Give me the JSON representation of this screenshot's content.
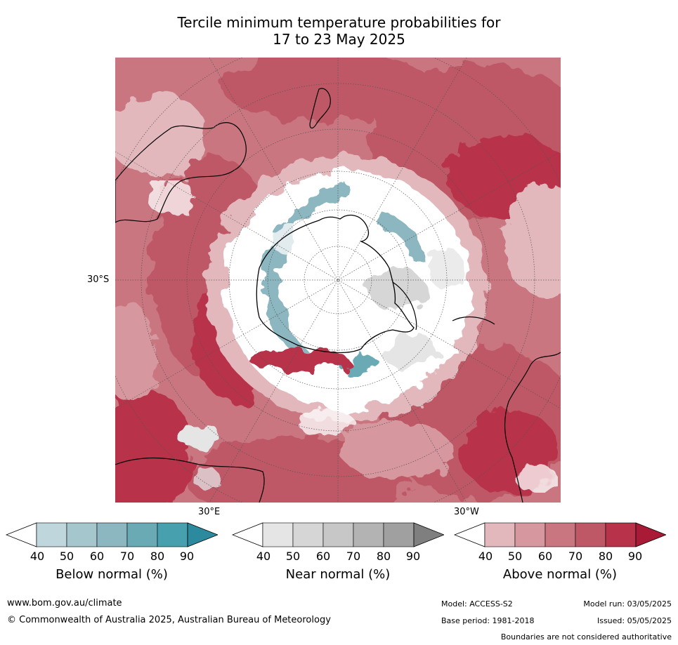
{
  "title_line1": "Tercile minimum temperature probabilities for",
  "title_line2": "17 to 23 May 2025",
  "map": {
    "lat_label": "30°S",
    "lon_labels": [
      "30°E",
      "30°W"
    ]
  },
  "colorbars": [
    {
      "label": "Below normal (%)",
      "ticks": [
        "40",
        "50",
        "60",
        "70",
        "80",
        "90"
      ],
      "colors": [
        "#ffffff",
        "#bfd6dc",
        "#a6c6cd",
        "#8cb6c0",
        "#6aaab4",
        "#46a0ae",
        "#2b8a9e"
      ]
    },
    {
      "label": "Near normal (%)",
      "ticks": [
        "40",
        "50",
        "60",
        "70",
        "80",
        "90"
      ],
      "colors": [
        "#ffffff",
        "#e5e5e5",
        "#d6d6d6",
        "#c7c7c7",
        "#b3b3b3",
        "#a0a0a0",
        "#7f7f7f"
      ]
    },
    {
      "label": "Above normal (%)",
      "ticks": [
        "40",
        "50",
        "60",
        "70",
        "80",
        "90"
      ],
      "colors": [
        "#ffffff",
        "#e2b8bd",
        "#d6979f",
        "#c97680",
        "#bf5866",
        "#b8334a",
        "#a81a35"
      ]
    }
  ],
  "footer": {
    "website": "www.bom.gov.au/climate",
    "copyright": "© Commonwealth of Australia 2025, Australian Bureau of Meteorology",
    "model": "Model: ACCESS-S2",
    "base_period": "Base period: 1981-2018",
    "model_run": "Model run: 03/05/2025",
    "issued": "Issued: 05/05/2025",
    "disclaimer": "Boundaries are not considered authoritative"
  }
}
